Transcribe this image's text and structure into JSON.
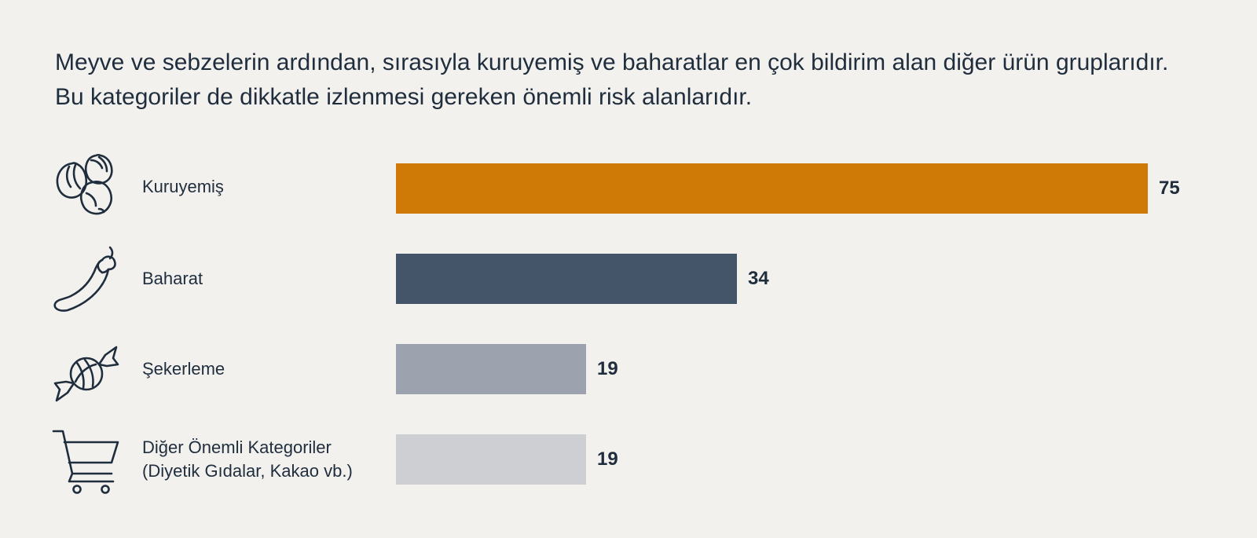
{
  "headline": "Meyve ve sebzelerin ardından, sırasıyla kuruyemiş ve baharatlar en çok bildirim alan diğer ürün gruplarıdır. Bu kategoriler de dikkatle izlenmesi gereken önemli risk alanlarıdır.",
  "chart_data": {
    "type": "bar",
    "orientation": "horizontal",
    "title": "Meyve ve sebzelerin ardından, sırasıyla kuruyemiş ve baharatlar en çok bildirim alan diğer ürün gruplarıdır. Bu kategoriler de dikkatle izlenmesi gereken önemli risk alanlarıdır.",
    "categories": [
      "Kuruyemiş",
      "Baharat",
      "Şekerleme",
      "Diğer Önemli Kategoriler (Diyetik Gıdalar, Kakao vb.)"
    ],
    "values": [
      75,
      34,
      19,
      19
    ],
    "xlim": [
      0,
      75
    ],
    "grid": false,
    "legend": "none",
    "data_labels": true
  },
  "rows": [
    {
      "label": "Kuruyemiş",
      "label2": "",
      "value": "75",
      "color": "#cf7a06",
      "icon": "nuts-icon"
    },
    {
      "label": "Baharat",
      "label2": "",
      "value": "34",
      "color": "#445469",
      "icon": "chili-pepper-icon"
    },
    {
      "label": "Şekerleme",
      "label2": "",
      "value": "19",
      "color": "#9ca3af",
      "icon": "candy-icon"
    },
    {
      "label": "Diğer Önemli Kategoriler",
      "label2": "(Diyetik Gıdalar, Kakao vb.)",
      "value": "19",
      "color": "#cdcfd3",
      "icon": "shopping-cart-icon"
    }
  ]
}
